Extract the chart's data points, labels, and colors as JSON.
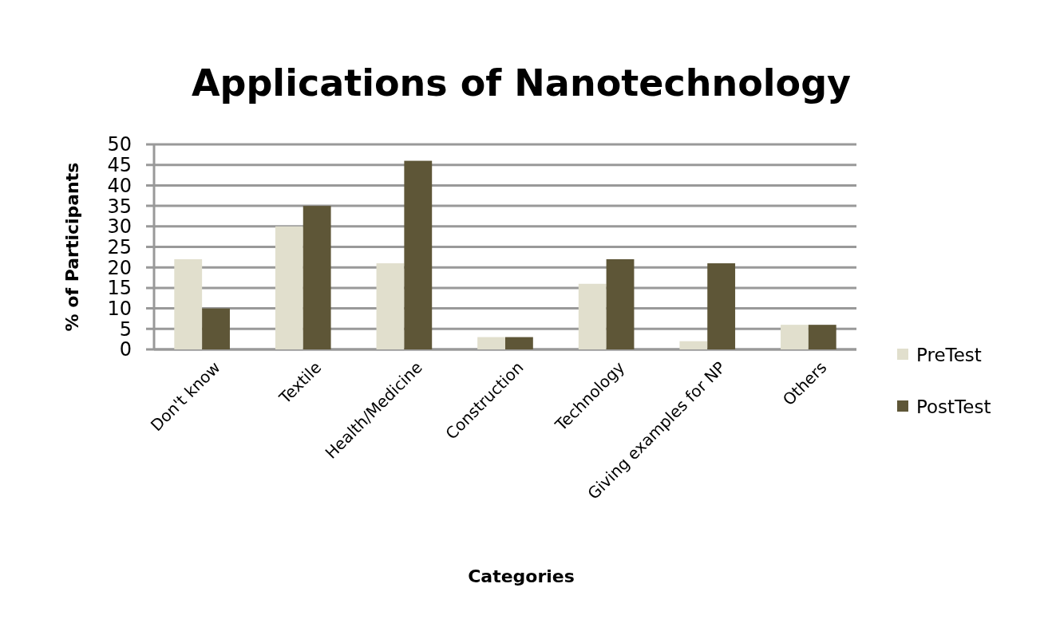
{
  "chart_data": {
    "type": "bar",
    "title": "Applications of Nanotechnology",
    "xlabel": "Categories",
    "ylabel": "% of Participants",
    "categories": [
      "Don't know",
      "Textile",
      "Health/Medicine",
      "Construction",
      "Technology",
      "Giving examples for NP",
      "Others"
    ],
    "series": [
      {
        "name": "PreTest",
        "color": "#e1dfcd",
        "values": [
          22,
          30,
          21,
          3,
          16,
          2,
          6
        ]
      },
      {
        "name": "PostTest",
        "color": "#5e5637",
        "values": [
          10,
          35,
          46,
          3,
          22,
          21,
          6
        ]
      }
    ],
    "ylim": [
      0,
      50
    ],
    "yticks": [
      0,
      5,
      10,
      15,
      20,
      25,
      30,
      35,
      40,
      45,
      50
    ],
    "grid": "y",
    "legend": "right"
  }
}
